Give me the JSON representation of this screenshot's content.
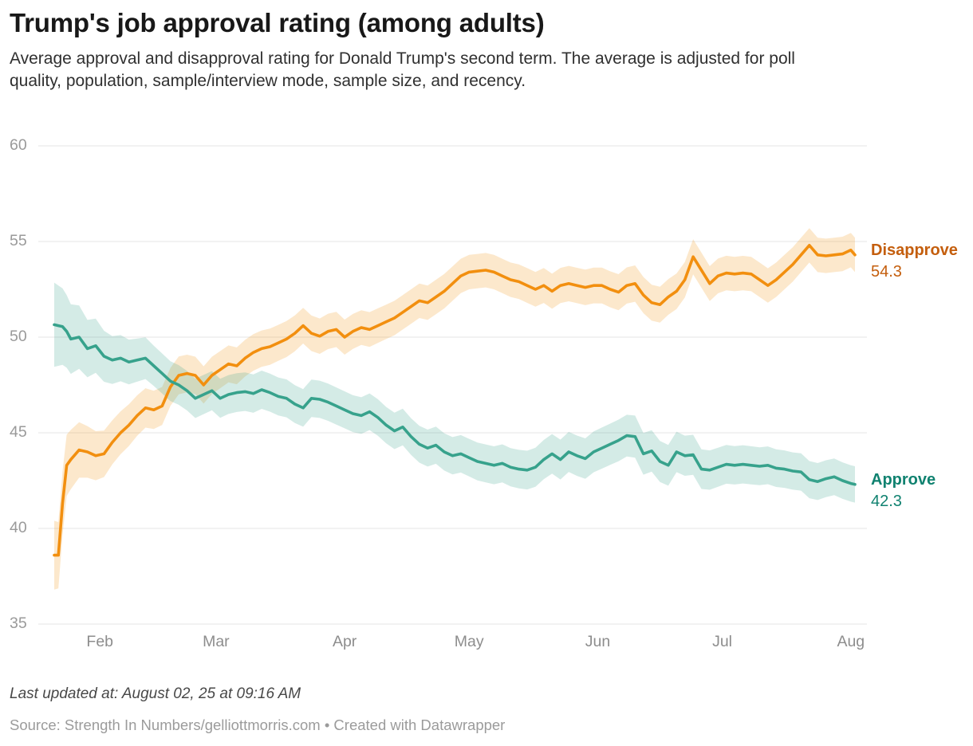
{
  "header": {
    "title": "Trump's job approval rating (among adults)",
    "subtitle": "Average approval and disapproval rating for Donald Trump's second term. The average is adjusted for poll quality, population, sample/interview mode, sample size, and recency."
  },
  "footer": {
    "updated": "Last updated at: August 02, 25 at 09:16 AM",
    "source": "Source: Strength In Numbers/gelliottmorris.com • Created with Datawrapper"
  },
  "colors": {
    "background": "#ffffff",
    "grid": "#e4e4e4",
    "y_tick_text": "#9a9a9a",
    "x_tick_text": "#8d8d8d",
    "disapprove_line": "#f28f0f",
    "disapprove_band": "rgba(243,151,25,0.22)",
    "disapprove_label": "#c45e0d",
    "approve_line": "#37a28c",
    "approve_band": "rgba(58,163,141,0.22)",
    "approve_label": "#108270"
  },
  "chart_data": {
    "type": "line",
    "title": "Trump's job approval rating (among adults)",
    "x_unit": "days since Jan 21",
    "ylim": [
      35,
      60
    ],
    "yticks": [
      35,
      40,
      45,
      50,
      55,
      60
    ],
    "grid": true,
    "legend_position": "right-of-line-end",
    "x_ticks": [
      {
        "label": "Feb",
        "day": 11
      },
      {
        "label": "Mar",
        "day": 39
      },
      {
        "label": "Apr",
        "day": 70
      },
      {
        "label": "May",
        "day": 100
      },
      {
        "label": "Jun",
        "day": 131
      },
      {
        "label": "Jul",
        "day": 161
      },
      {
        "label": "Aug",
        "day": 192
      }
    ],
    "days": [
      0,
      1,
      2,
      3,
      4,
      6,
      8,
      10,
      12,
      14,
      16,
      18,
      20,
      22,
      24,
      26,
      28,
      30,
      32,
      34,
      36,
      38,
      40,
      42,
      44,
      46,
      48,
      50,
      52,
      54,
      56,
      58,
      60,
      62,
      64,
      66,
      68,
      70,
      72,
      74,
      76,
      78,
      80,
      82,
      84,
      86,
      88,
      90,
      92,
      94,
      96,
      98,
      100,
      102,
      104,
      106,
      108,
      110,
      112,
      114,
      116,
      118,
      120,
      122,
      124,
      126,
      128,
      130,
      132,
      134,
      136,
      138,
      140,
      142,
      144,
      146,
      148,
      150,
      152,
      154,
      156,
      158,
      160,
      162,
      164,
      166,
      168,
      170,
      172,
      174,
      176,
      178,
      180,
      182,
      184,
      186,
      188,
      190,
      192,
      193
    ],
    "series": [
      {
        "name": "Disapprove",
        "end_label": "54.3",
        "end_value": 54.3,
        "values": [
          38.6,
          38.6,
          41.3,
          43.3,
          43.6,
          44.1,
          44.0,
          43.8,
          43.9,
          44.5,
          45.0,
          45.4,
          45.9,
          46.3,
          46.2,
          46.4,
          47.4,
          48.0,
          48.1,
          48.0,
          47.5,
          48.0,
          48.3,
          48.6,
          48.5,
          48.9,
          49.2,
          49.4,
          49.5,
          49.7,
          49.9,
          50.2,
          50.6,
          50.2,
          50.05,
          50.3,
          50.4,
          50.0,
          50.3,
          50.5,
          50.4,
          50.6,
          50.8,
          51.0,
          51.3,
          51.6,
          51.9,
          51.8,
          52.1,
          52.4,
          52.8,
          53.2,
          53.4,
          53.45,
          53.5,
          53.4,
          53.2,
          53.0,
          52.9,
          52.7,
          52.5,
          52.7,
          52.4,
          52.7,
          52.8,
          52.7,
          52.6,
          52.7,
          52.7,
          52.5,
          52.35,
          52.7,
          52.8,
          52.2,
          51.8,
          51.7,
          52.1,
          52.4,
          53.0,
          54.2,
          53.5,
          52.8,
          53.2,
          53.35,
          53.3,
          53.35,
          53.3,
          53.0,
          52.7,
          53.0,
          53.4,
          53.8,
          54.3,
          54.8,
          54.3,
          54.25,
          54.3,
          54.35,
          54.55,
          54.3
        ],
        "band_halfwidth_points": [
          [
            0,
            1.8
          ],
          [
            3,
            1.6
          ],
          [
            8,
            1.35
          ],
          [
            14,
            1.15
          ],
          [
            24,
            1.0
          ],
          [
            50,
            0.95
          ],
          [
            80,
            0.9
          ],
          [
            110,
            0.9
          ],
          [
            140,
            0.95
          ],
          [
            165,
            0.9
          ],
          [
            193,
            0.9
          ]
        ]
      },
      {
        "name": "Approve",
        "end_label": "42.3",
        "end_value": 42.3,
        "values": [
          50.65,
          50.6,
          50.55,
          50.3,
          49.9,
          50.0,
          49.4,
          49.55,
          49.0,
          48.8,
          48.9,
          48.7,
          48.8,
          48.9,
          48.5,
          48.1,
          47.7,
          47.5,
          47.2,
          46.8,
          47.0,
          47.2,
          46.8,
          47.0,
          47.1,
          47.15,
          47.05,
          47.25,
          47.1,
          46.9,
          46.8,
          46.5,
          46.3,
          46.8,
          46.75,
          46.6,
          46.4,
          46.2,
          46.0,
          45.9,
          46.1,
          45.8,
          45.4,
          45.1,
          45.3,
          44.8,
          44.4,
          44.2,
          44.35,
          44.0,
          43.8,
          43.9,
          43.7,
          43.5,
          43.4,
          43.3,
          43.4,
          43.2,
          43.1,
          43.05,
          43.2,
          43.6,
          43.9,
          43.6,
          44.0,
          43.8,
          43.65,
          44.0,
          44.2,
          44.4,
          44.6,
          44.85,
          44.8,
          43.9,
          44.05,
          43.5,
          43.3,
          44.0,
          43.8,
          43.85,
          43.1,
          43.05,
          43.2,
          43.35,
          43.3,
          43.35,
          43.3,
          43.25,
          43.3,
          43.15,
          43.1,
          43.0,
          42.95,
          42.55,
          42.45,
          42.6,
          42.7,
          42.5,
          42.35,
          42.3
        ],
        "band_halfwidth_points": [
          [
            0,
            2.2
          ],
          [
            3,
            1.9
          ],
          [
            8,
            1.5
          ],
          [
            14,
            1.25
          ],
          [
            24,
            1.05
          ],
          [
            50,
            1.0
          ],
          [
            80,
            0.95
          ],
          [
            110,
            1.0
          ],
          [
            140,
            1.1
          ],
          [
            165,
            1.0
          ],
          [
            193,
            0.95
          ]
        ]
      }
    ]
  }
}
